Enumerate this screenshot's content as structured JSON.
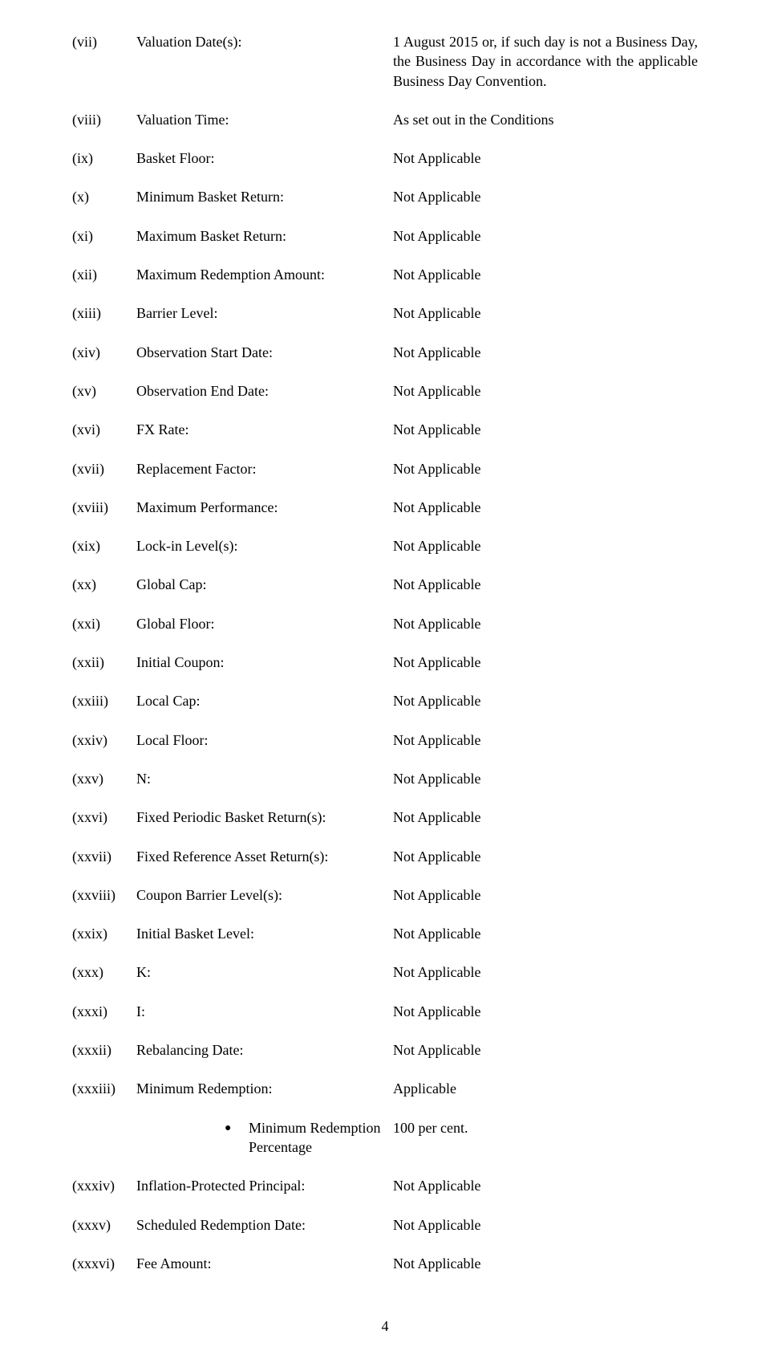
{
  "rows": [
    {
      "num": "(vii)",
      "label": "Valuation Date(s):",
      "value": "1 August 2015 or, if such day is not a Business Day, the Business Day in accordance with the applicable Business Day Convention."
    },
    {
      "num": "(viii)",
      "label": "Valuation Time:",
      "value": "As set out in the Conditions"
    },
    {
      "num": "(ix)",
      "label": "Basket Floor:",
      "value": "Not Applicable"
    },
    {
      "num": "(x)",
      "label": "Minimum Basket Return:",
      "value": "Not Applicable"
    },
    {
      "num": "(xi)",
      "label": "Maximum Basket Return:",
      "value": "Not Applicable"
    },
    {
      "num": "(xii)",
      "label": "Maximum Redemption Amount:",
      "value": "Not Applicable"
    },
    {
      "num": "(xiii)",
      "label": "Barrier Level:",
      "value": "Not Applicable"
    },
    {
      "num": "(xiv)",
      "label": "Observation Start Date:",
      "value": "Not Applicable"
    },
    {
      "num": "(xv)",
      "label": "Observation End Date:",
      "value": "Not Applicable"
    },
    {
      "num": "(xvi)",
      "label": "FX Rate:",
      "value": "Not Applicable"
    },
    {
      "num": "(xvii)",
      "label": "Replacement Factor:",
      "value": "Not Applicable"
    },
    {
      "num": "(xviii)",
      "label": "Maximum Performance:",
      "value": "Not Applicable"
    },
    {
      "num": "(xix)",
      "label": "Lock-in Level(s):",
      "value": "Not Applicable"
    },
    {
      "num": "(xx)",
      "label": "Global Cap:",
      "value": "Not Applicable"
    },
    {
      "num": "(xxi)",
      "label": "Global Floor:",
      "value": "Not Applicable"
    },
    {
      "num": "(xxii)",
      "label": "Initial Coupon:",
      "value": "Not Applicable"
    },
    {
      "num": "(xxiii)",
      "label": "Local Cap:",
      "value": "Not Applicable"
    },
    {
      "num": "(xxiv)",
      "label": "Local Floor:",
      "value": "Not Applicable"
    },
    {
      "num": "(xxv)",
      "label": "N:",
      "value": "Not Applicable"
    },
    {
      "num": "(xxvi)",
      "label": "Fixed Periodic Basket Return(s):",
      "value": "Not Applicable"
    },
    {
      "num": "(xxvii)",
      "label": "Fixed Reference Asset Return(s):",
      "value": "Not Applicable"
    },
    {
      "num": "(xxviii)",
      "label": "Coupon Barrier Level(s):",
      "value": "Not Applicable"
    },
    {
      "num": "(xxix)",
      "label": "Initial Basket Level:",
      "value": "Not Applicable"
    },
    {
      "num": "(xxx)",
      "label": "K:",
      "value": "Not Applicable"
    },
    {
      "num": "(xxxi)",
      "label": "I:",
      "value": "Not Applicable"
    },
    {
      "num": "(xxxii)",
      "label": "Rebalancing Date:",
      "value": "Not Applicable"
    },
    {
      "num": "(xxxiii)",
      "label": "Minimum Redemption:",
      "value": "Applicable"
    }
  ],
  "sub": {
    "bullet": "●",
    "label": "Minimum Redemption Percentage",
    "value": "100 per cent."
  },
  "rows2": [
    {
      "num": "(xxxiv)",
      "label": "Inflation-Protected Principal:",
      "value": "Not Applicable"
    },
    {
      "num": "(xxxv)",
      "label": "Scheduled Redemption Date:",
      "value": "Not Applicable"
    },
    {
      "num": "(xxxvi)",
      "label": "Fee Amount:",
      "value": "Not Applicable"
    }
  ],
  "pageNumber": "4"
}
